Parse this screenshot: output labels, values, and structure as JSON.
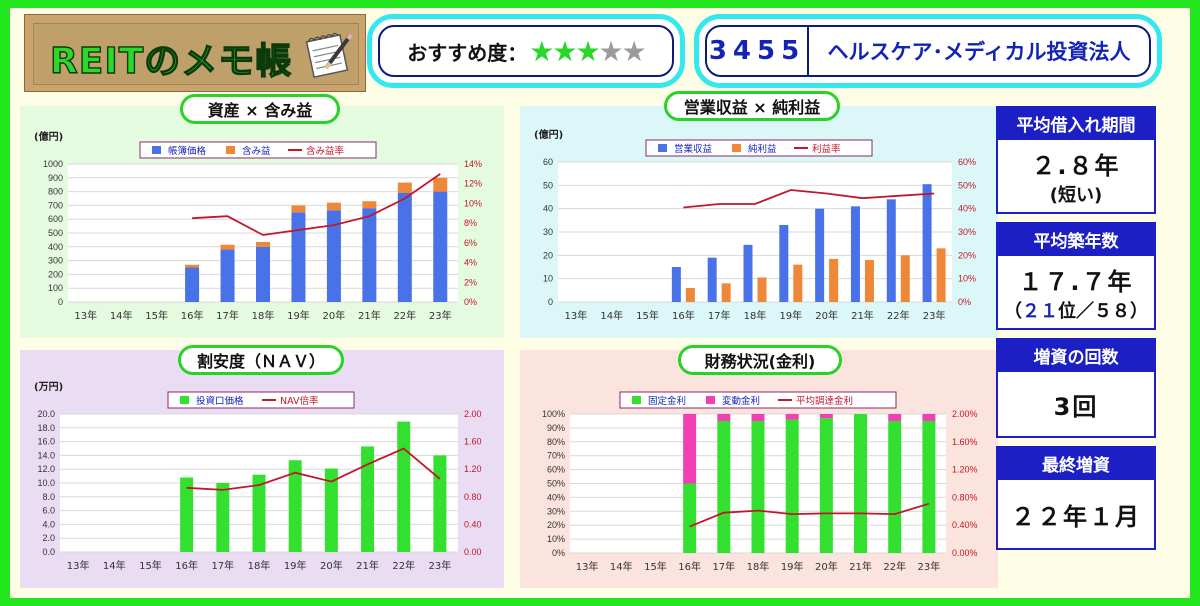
{
  "header": {
    "logo_text": "REITのメモ帳",
    "recommend_label": "おすすめ度：",
    "stars": {
      "on": 3,
      "total": 5
    },
    "code": "3455",
    "name": "ヘルスケア･メディカル投資法人"
  },
  "info": {
    "borrow": {
      "title": "平均借入れ期間",
      "value": "２.８年",
      "note": "(短い)"
    },
    "age": {
      "title": "平均築年数",
      "value": "１７.７年",
      "note_open": "（",
      "note_rank": "２１",
      "note_mid": "位／５８",
      "note_close": "）"
    },
    "increase_count": {
      "title": "増資の回数",
      "value": "3回"
    },
    "last_increase": {
      "title": "最終増資",
      "value": "２２年１月"
    }
  },
  "colors": {
    "green": "#22e61e",
    "blue": "#4a72e8",
    "orange": "#ee8738",
    "red": "#c0182a",
    "pink": "#f040b4",
    "navy": "#1b1fc4",
    "cyan": "#35e8ee"
  },
  "chart_data": [
    {
      "type": "bar",
      "title": "資産 × 含み益",
      "unit": "(億円)",
      "categories": [
        "13年",
        "14年",
        "15年",
        "16年",
        "17年",
        "18年",
        "19年",
        "20年",
        "21年",
        "22年",
        "23年"
      ],
      "stacked": true,
      "series": [
        {
          "name": "帳簿価格",
          "values": [
            null,
            null,
            null,
            250,
            380,
            400,
            650,
            665,
            680,
            790,
            800
          ]
        },
        {
          "name": "含み益",
          "values": [
            null,
            null,
            null,
            20,
            35,
            35,
            50,
            55,
            50,
            75,
            100
          ]
        },
        {
          "name": "含み益率",
          "type": "line",
          "axis": "right",
          "values": [
            null,
            null,
            null,
            8.5,
            8.7,
            6.8,
            7.3,
            7.8,
            8.7,
            10.5,
            13.0
          ]
        }
      ],
      "yleft": {
        "ticks": [
          "0",
          "100",
          "200",
          "300",
          "400",
          "500",
          "600",
          "700",
          "800",
          "900",
          "1000"
        ],
        "max": 1000
      },
      "yright": {
        "ticks": [
          "0%",
          "2%",
          "4%",
          "6%",
          "8%",
          "10%",
          "12%",
          "14%"
        ],
        "max": 14
      }
    },
    {
      "type": "bar",
      "title": "営業収益 × 純利益",
      "unit": "(億円)",
      "categories": [
        "13年",
        "14年",
        "15年",
        "16年",
        "17年",
        "18年",
        "19年",
        "20年",
        "21年",
        "22年",
        "23年"
      ],
      "series": [
        {
          "name": "営業収益",
          "values": [
            null,
            null,
            null,
            15,
            19,
            24.5,
            33,
            40,
            41,
            44,
            50.5
          ]
        },
        {
          "name": "純利益",
          "values": [
            null,
            null,
            null,
            6,
            8,
            10.5,
            16,
            18.5,
            18,
            20,
            23
          ]
        },
        {
          "name": "利益率",
          "type": "line",
          "axis": "right",
          "values": [
            null,
            null,
            null,
            40.5,
            42,
            42,
            48,
            46.5,
            44.5,
            45.5,
            46.5
          ]
        }
      ],
      "yleft": {
        "ticks": [
          "0",
          "10",
          "20",
          "30",
          "40",
          "50",
          "60"
        ],
        "max": 60
      },
      "yright": {
        "ticks": [
          "0%",
          "10%",
          "20%",
          "30%",
          "40%",
          "50%",
          "60%"
        ],
        "max": 60
      }
    },
    {
      "type": "bar",
      "title": "割安度（ＮＡＶ）",
      "unit": "(万円)",
      "categories": [
        "13年",
        "14年",
        "15年",
        "16年",
        "17年",
        "18年",
        "19年",
        "20年",
        "21年",
        "22年",
        "23年"
      ],
      "series": [
        {
          "name": "投資口価格",
          "values": [
            null,
            null,
            null,
            10.8,
            10.0,
            11.2,
            13.3,
            12.1,
            15.3,
            18.9,
            14.0
          ]
        },
        {
          "name": "NAV倍率",
          "type": "line",
          "axis": "right",
          "values": [
            null,
            null,
            null,
            0.93,
            0.9,
            0.97,
            1.15,
            1.02,
            1.27,
            1.5,
            1.06
          ]
        }
      ],
      "yleft": {
        "ticks": [
          "0.0",
          "2.0",
          "4.0",
          "6.0",
          "8.0",
          "10.0",
          "12.0",
          "14.0",
          "16.0",
          "18.0",
          "20.0"
        ],
        "max": 20
      },
      "yright": {
        "ticks": [
          "0.00",
          "0.40",
          "0.80",
          "1.20",
          "1.60",
          "2.00"
        ],
        "max": 2
      }
    },
    {
      "type": "bar",
      "title": "財務状況(金利)",
      "categories": [
        "13年",
        "14年",
        "15年",
        "16年",
        "17年",
        "18年",
        "19年",
        "20年",
        "21年",
        "22年",
        "23年"
      ],
      "stacked": true,
      "series": [
        {
          "name": "固定金利",
          "values": [
            null,
            null,
            null,
            50,
            95,
            95,
            96,
            97,
            100,
            95,
            95
          ]
        },
        {
          "name": "変動金利",
          "values": [
            null,
            null,
            null,
            50,
            5,
            5,
            4,
            3,
            0,
            5,
            5
          ]
        },
        {
          "name": "平均調達金利",
          "type": "line",
          "axis": "right",
          "values": [
            null,
            null,
            null,
            0.38,
            0.58,
            0.61,
            0.56,
            0.57,
            0.57,
            0.56,
            0.71
          ]
        }
      ],
      "yleft": {
        "ticks": [
          "0%",
          "10%",
          "20%",
          "30%",
          "40%",
          "50%",
          "60%",
          "70%",
          "80%",
          "90%",
          "100%"
        ],
        "max": 100
      },
      "yright": {
        "ticks": [
          "0.00%",
          "0.40%",
          "0.80%",
          "1.20%",
          "1.60%",
          "2.00%"
        ],
        "max": 2
      }
    }
  ]
}
